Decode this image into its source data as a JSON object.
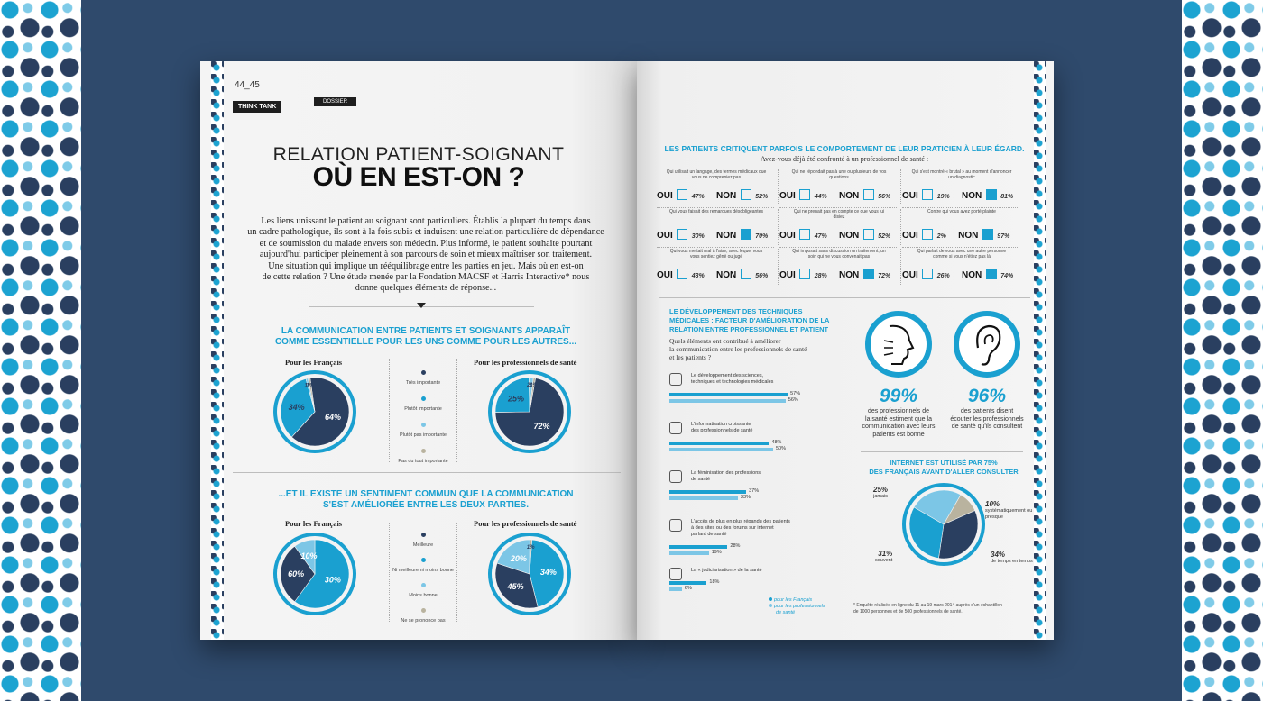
{
  "colors": {
    "dark": "#2a3f60",
    "blue": "#1aa0d0",
    "light": "#7cc6e6",
    "grey": "#b9b39f",
    "bg": "#2f4a6c"
  },
  "left": {
    "page_number": "44_45",
    "tag": "THINK TANK",
    "tag2": "DOSSIER",
    "title_line1": "RELATION PATIENT-SOIGNANT",
    "title_line2": "OÙ EN EST-ON ?",
    "intro": [
      "Les liens unissant le patient au soignant sont particuliers. Établis la plupart du temps dans",
      "un cadre pathologique, ils sont à la fois subis et induisent une relation particulière de dépendance",
      "et de soumission du malade envers son médecin. Plus informé, le patient souhaite pourtant",
      "aujourd'hui participer pleinement à son parcours de soin et mieux maîtriser son traitement.",
      "Une situation qui implique un rééquilibrage entre les parties en jeu. Mais où en est-on",
      "de cette relation ? Une étude menée par la Fondation MACSF et Harris Interactive* nous",
      "donne quelques éléments de réponse..."
    ],
    "section1": {
      "title_line1": "LA COMMUNICATION ENTRE PATIENTS ET SOIGNANTS APPARAÎT",
      "title_line2": "COMME ESSENTIELLE POUR LES UNS COMME POUR LES AUTRES...",
      "label_left": "Pour les Français",
      "label_right": "Pour les professionnels de santé",
      "legend": [
        "Très importante",
        "Plutôt importante",
        "Plutôt pas importante",
        "Pas du tout importante"
      ],
      "pie_left": [
        {
          "v": 64,
          "label": "64%"
        },
        {
          "v": 34,
          "label": "34%"
        },
        {
          "v": 1,
          "label": "1%"
        },
        {
          "v": 1,
          "label": "1%"
        }
      ],
      "pie_right": [
        {
          "v": 72,
          "label": "72%"
        },
        {
          "v": 25,
          "label": "25%"
        },
        {
          "v": 2,
          "label": "2%"
        },
        {
          "v": 1,
          "label": "1%"
        }
      ]
    },
    "section2": {
      "title_line1": "...ET IL EXISTE UN SENTIMENT COMMUN QUE LA COMMUNICATION",
      "title_line2": "S'EST AMÉLIORÉE ENTRE LES DEUX PARTIES.",
      "label_left": "Pour les Français",
      "label_right": "Pour les professionnels de santé",
      "legend": [
        "Meilleure",
        "Ni meilleure ni moins bonne",
        "Moins bonne",
        "Ne se prononce pas"
      ],
      "pie_left": [
        {
          "v": 30,
          "label": "30%"
        },
        {
          "v": 60,
          "label": "60%"
        },
        {
          "v": 10,
          "label": "10%"
        },
        {
          "v": 0,
          "label": ""
        }
      ],
      "pie_right": [
        {
          "v": 34,
          "label": "34%"
        },
        {
          "v": 45,
          "label": "45%"
        },
        {
          "v": 20,
          "label": "20%"
        },
        {
          "v": 1,
          "label": "1%"
        }
      ]
    }
  },
  "right": {
    "header": "LES PATIENTS CRITIQUENT PARFOIS LE COMPORTEMENT DE LEUR PRATICIEN À LEUR ÉGARD.",
    "subheader": "Avez-vous déjà été confronté à un professionnel de santé :",
    "oui": "OUI",
    "non": "NON",
    "questions": [
      {
        "q": "Qui utilisait un langage, des termes médicaux que vous ne compreniez pas",
        "oui": "47%",
        "non": "52%"
      },
      {
        "q": "Qui ne répondait pas à une ou plusieurs de vos questions",
        "oui": "44%",
        "non": "56%"
      },
      {
        "q": "Qui s'est montré « brutal » au moment d'annoncer un diagnostic",
        "oui": "19%",
        "non": "81%"
      },
      {
        "q": "Qui vous faisait des remarques désobligeantes",
        "oui": "30%",
        "non": "70%"
      },
      {
        "q": "Qui ne prenait pas en compte ce que vous lui disiez",
        "oui": "47%",
        "non": "52%"
      },
      {
        "q": "Contre qui vous avez porté plainte",
        "oui": "2%",
        "non": "97%"
      },
      {
        "q": "Qui vous mettait mal à l'aise, avec lequel vous vous sentiez gêné ou jugé",
        "oui": "43%",
        "non": "56%"
      },
      {
        "q": "Qui imposait sans discussion un traitement, un soin qui ne vous convenait pas",
        "oui": "28%",
        "non": "72%"
      },
      {
        "q": "Qui parlait de vous avec une autre personne comme si vous n'étiez pas là",
        "oui": "26%",
        "non": "74%"
      }
    ],
    "tech_title": [
      "LE DÉVELOPPEMENT DES TECHNIQUES",
      "MÉDICALES : FACTEUR D'AMÉLIORATION DE LA",
      "RELATION ENTRE PROFESSIONNEL ET PATIENT"
    ],
    "tech_question": [
      "Quels éléments ont contribué à améliorer",
      "la communication entre les professionnels de santé",
      "et les patients ?"
    ],
    "bars": [
      {
        "label": [
          "Le développement des sciences,",
          "techniques et technologies médicales"
        ],
        "a": 57,
        "b": 56,
        "a_label": "57%",
        "b_label": "56%"
      },
      {
        "label": [
          "L'informatisation croissante",
          "des professionnels de santé"
        ],
        "a": 48,
        "b": 50,
        "a_label": "48%",
        "b_label": "50%"
      },
      {
        "label": [
          "La féminisation des professions",
          "de santé"
        ],
        "a": 37,
        "b": 33,
        "a_label": "37%",
        "b_label": "33%"
      },
      {
        "label": [
          "L'accès de plus en plus répandu des patients",
          "à des sites ou des forums sur internet",
          "parlant de santé"
        ],
        "a": 28,
        "b": 19,
        "a_label": "28%",
        "b_label": "19%"
      },
      {
        "label": [
          "La « judiciarisation » de la santé"
        ],
        "a": 18,
        "b": 6,
        "a_label": "18%",
        "b_label": "6%"
      }
    ],
    "legend_fr": "pour les Français",
    "legend_pro": [
      "pour les professionnels",
      "de santé"
    ],
    "stat1": {
      "value": "99%",
      "text": [
        "des professionnels de",
        "la santé estiment que la",
        "communication avec leurs",
        "patients est bonne"
      ]
    },
    "stat2": {
      "value": "96%",
      "text": [
        "des patients disent",
        "écouter les professionnels",
        "de santé qu'ils consultent"
      ]
    },
    "internet_title": [
      "INTERNET EST UTILISÉ PAR 75%",
      "DES FRANÇAIS AVANT D'ALLER CONSULTER"
    ],
    "internet_pie": [
      {
        "v": 25,
        "pct": "25%",
        "label": "jamais"
      },
      {
        "v": 10,
        "pct": "10%",
        "label": "systématiquement ou presque"
      },
      {
        "v": 34,
        "pct": "34%",
        "label": "de temps en temps"
      },
      {
        "v": 31,
        "pct": "31%",
        "label": "souvent"
      }
    ],
    "footnote": [
      "* Enquête réalisée en ligne du 11 au 19 mars 2014 auprès d'un échantillon",
      "de 1000 personnes et de 500 professionnels de santé."
    ]
  }
}
